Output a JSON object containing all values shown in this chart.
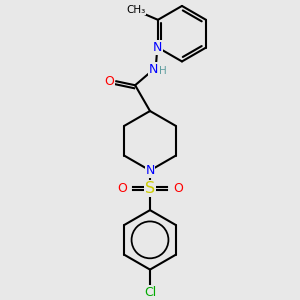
{
  "bg_color": "#e8e8e8",
  "atom_colors": {
    "C": "#000000",
    "N": "#0000ff",
    "O": "#ff0000",
    "S": "#cccc00",
    "Cl": "#00aa00",
    "H": "#5f9ea0"
  },
  "bond_color": "#000000",
  "bond_lw": 1.5,
  "font_size": 8.5,
  "figsize": [
    3.0,
    3.0
  ],
  "dpi": 100,
  "xlim": [
    0,
    300
  ],
  "ylim": [
    0,
    300
  ]
}
